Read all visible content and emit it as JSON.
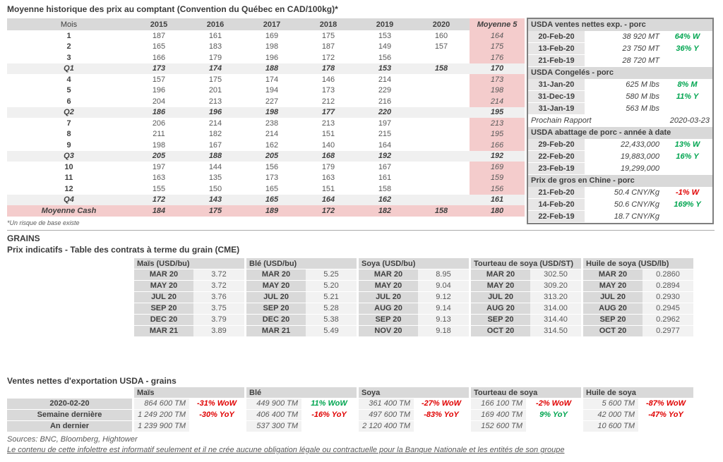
{
  "colors": {
    "pink": "#f4cccc",
    "header_gray": "#d9d9d9",
    "row_gray": "#f0f0f0",
    "cell_gray": "#f2f2f2",
    "green": "#00a550",
    "red": "#e00000"
  },
  "pork_table": {
    "title": "Moyenne historique des prix au comptant (Convention du Québec en CAD/100kg)*",
    "footnote": "*Un risque de base existe",
    "columns": [
      "Mois",
      "2015",
      "2016",
      "2017",
      "2018",
      "2019",
      "2020",
      "Moyenne 5"
    ],
    "rows": [
      {
        "label": "1",
        "type": "month",
        "values": [
          "187",
          "161",
          "169",
          "175",
          "153",
          "160",
          "164"
        ]
      },
      {
        "label": "2",
        "type": "month",
        "values": [
          "165",
          "183",
          "198",
          "187",
          "149",
          "157",
          "175"
        ]
      },
      {
        "label": "3",
        "type": "month",
        "values": [
          "166",
          "179",
          "196",
          "172",
          "156",
          "",
          "176"
        ]
      },
      {
        "label": "Q1",
        "type": "quarter",
        "values": [
          "173",
          "174",
          "188",
          "178",
          "153",
          "158",
          "170"
        ]
      },
      {
        "label": "4",
        "type": "month",
        "values": [
          "157",
          "175",
          "174",
          "146",
          "214",
          "",
          "173"
        ]
      },
      {
        "label": "5",
        "type": "month",
        "values": [
          "196",
          "201",
          "194",
          "173",
          "229",
          "",
          "198"
        ]
      },
      {
        "label": "6",
        "type": "month",
        "values": [
          "204",
          "213",
          "227",
          "212",
          "216",
          "",
          "214"
        ]
      },
      {
        "label": "Q2",
        "type": "quarter",
        "values": [
          "186",
          "196",
          "198",
          "177",
          "220",
          "",
          "195"
        ]
      },
      {
        "label": "7",
        "type": "month",
        "values": [
          "206",
          "214",
          "238",
          "213",
          "197",
          "",
          "213"
        ]
      },
      {
        "label": "8",
        "type": "month",
        "values": [
          "211",
          "182",
          "214",
          "151",
          "215",
          "",
          "195"
        ]
      },
      {
        "label": "9",
        "type": "month",
        "values": [
          "198",
          "167",
          "162",
          "140",
          "164",
          "",
          "166"
        ]
      },
      {
        "label": "Q3",
        "type": "quarter",
        "values": [
          "205",
          "188",
          "205",
          "168",
          "192",
          "",
          "192"
        ]
      },
      {
        "label": "10",
        "type": "month",
        "values": [
          "197",
          "144",
          "156",
          "179",
          "167",
          "",
          "169"
        ]
      },
      {
        "label": "11",
        "type": "month",
        "values": [
          "163",
          "135",
          "173",
          "163",
          "161",
          "",
          "159"
        ]
      },
      {
        "label": "12",
        "type": "month",
        "values": [
          "155",
          "150",
          "165",
          "151",
          "158",
          "",
          "156"
        ]
      },
      {
        "label": "Q4",
        "type": "quarter",
        "values": [
          "172",
          "143",
          "165",
          "164",
          "162",
          "",
          "161"
        ]
      },
      {
        "label": "Moyenne Cash",
        "type": "cash",
        "values": [
          "184",
          "175",
          "189",
          "172",
          "182",
          "158",
          "180"
        ]
      }
    ]
  },
  "usda_box": {
    "items": [
      {
        "type": "section",
        "header": "USDA ventes nettes exp. - porc",
        "rows": [
          {
            "date": "20-Feb-20",
            "value": "38 920  MT",
            "change": "64% W",
            "change_color": "green"
          },
          {
            "date": "13-Feb-20",
            "value": "23 750  MT",
            "change": "36% Y",
            "change_color": "green"
          },
          {
            "date": "21-Feb-19",
            "value": "28 720  MT",
            "change": "",
            "change_color": ""
          }
        ]
      },
      {
        "type": "section",
        "header": "USDA Congelés - porc",
        "rows": [
          {
            "date": "31-Jan-20",
            "value": "625 M lbs",
            "change": "8% M",
            "change_color": "green"
          },
          {
            "date": "31-Dec-19",
            "value": "580 M lbs",
            "change": "11% Y",
            "change_color": "green"
          },
          {
            "date": "31-Jan-19",
            "value": "563 M lbs",
            "change": "",
            "change_color": ""
          }
        ]
      },
      {
        "type": "report",
        "label": "Prochain Rapport",
        "date": "2020-03-23"
      },
      {
        "type": "section",
        "header": "USDA abattage de porc - année à date",
        "rows": [
          {
            "date": "29-Feb-20",
            "value": "22,433,000",
            "change": "13% W",
            "change_color": "green"
          },
          {
            "date": "22-Feb-20",
            "value": "19,883,000",
            "change": "16% Y",
            "change_color": "green"
          },
          {
            "date": "23-Feb-19",
            "value": "19,299,000",
            "change": "",
            "change_color": ""
          }
        ]
      },
      {
        "type": "section",
        "header": "Prix de gros en Chine - porc",
        "rows": [
          {
            "date": "21-Feb-20",
            "value": "50.4 CNY/Kg",
            "change": "-1% W",
            "change_color": "red"
          },
          {
            "date": "14-Feb-20",
            "value": "50.6 CNY/Kg",
            "change": "169% Y",
            "change_color": "green"
          },
          {
            "date": "22-Feb-19",
            "value": "18.7 CNY/Kg",
            "change": "",
            "change_color": ""
          }
        ]
      }
    ]
  },
  "grains": {
    "section_title": "GRAINS",
    "futures_title": "Prix indicatifs - Table des contrats à terme du grain (CME)",
    "exports_title": "Ventes nettes d'exportation USDA - grains"
  },
  "futures": {
    "groups": [
      {
        "header": "Maïs (USD/bu)",
        "rows": [
          [
            "MAR 20",
            "3.72"
          ],
          [
            "MAY 20",
            "3.72"
          ],
          [
            "JUL 20",
            "3.76"
          ],
          [
            "SEP 20",
            "3.75"
          ],
          [
            "DEC 20",
            "3.79"
          ],
          [
            "MAR 21",
            "3.89"
          ]
        ]
      },
      {
        "header": "Blé (USD/bu)",
        "rows": [
          [
            "MAR 20",
            "5.25"
          ],
          [
            "MAY 20",
            "5.20"
          ],
          [
            "JUL 20",
            "5.21"
          ],
          [
            "SEP 20",
            "5.28"
          ],
          [
            "DEC 20",
            "5.38"
          ],
          [
            "MAR 21",
            "5.49"
          ]
        ]
      },
      {
        "header": "Soya (USD/bu)",
        "rows": [
          [
            "MAR 20",
            "8.95"
          ],
          [
            "MAY 20",
            "9.04"
          ],
          [
            "JUL 20",
            "9.12"
          ],
          [
            "AUG 20",
            "9.14"
          ],
          [
            "SEP 20",
            "9.13"
          ],
          [
            "NOV 20",
            "9.18"
          ]
        ]
      },
      {
        "header": "Tourteau de soya (USD/ST)",
        "rows": [
          [
            "MAR 20",
            "302.50"
          ],
          [
            "MAY 20",
            "309.20"
          ],
          [
            "JUL 20",
            "313.20"
          ],
          [
            "AUG 20",
            "314.00"
          ],
          [
            "SEP 20",
            "314.40"
          ],
          [
            "OCT 20",
            "314.50"
          ]
        ]
      },
      {
        "header": "Huile de soya (USD/lb)",
        "rows": [
          [
            "MAR 20",
            "0.2860"
          ],
          [
            "MAY 20",
            "0.2894"
          ],
          [
            "JUL 20",
            "0.2930"
          ],
          [
            "AUG 20",
            "0.2945"
          ],
          [
            "SEP 20",
            "0.2962"
          ],
          [
            "OCT 20",
            "0.2977"
          ]
        ]
      }
    ]
  },
  "exports": {
    "row_labels": [
      "2020-02-20",
      "Semaine dernière",
      "An dernier"
    ],
    "groups": [
      {
        "header": "Maïs",
        "rows": [
          {
            "value": "864 600 TM",
            "change": "-31% WoW",
            "change_color": "red"
          },
          {
            "value": "1 249 200 TM",
            "change": "-30% YoY",
            "change_color": "red"
          },
          {
            "value": "1 239 900 TM",
            "change": "",
            "change_color": ""
          }
        ]
      },
      {
        "header": "Blé",
        "rows": [
          {
            "value": "449 900 TM",
            "change": "11% WoW",
            "change_color": "green"
          },
          {
            "value": "406 400 TM",
            "change": "-16% YoY",
            "change_color": "red"
          },
          {
            "value": "537 300 TM",
            "change": "",
            "change_color": ""
          }
        ]
      },
      {
        "header": "Soya",
        "rows": [
          {
            "value": "361 400 TM",
            "change": "-27% WoW",
            "change_color": "red"
          },
          {
            "value": "497 600 TM",
            "change": "-83% YoY",
            "change_color": "red"
          },
          {
            "value": "2 120 400 TM",
            "change": "",
            "change_color": ""
          }
        ]
      },
      {
        "header": "Tourteau de soya",
        "rows": [
          {
            "value": "166 100 TM",
            "change": "-2% WoW",
            "change_color": "red"
          },
          {
            "value": "169 400 TM",
            "change": "9% YoY",
            "change_color": "green"
          },
          {
            "value": "152 600 TM",
            "change": "",
            "change_color": ""
          }
        ]
      },
      {
        "header": "Huile de soya",
        "rows": [
          {
            "value": "5 600 TM",
            "change": "-87% WoW",
            "change_color": "red"
          },
          {
            "value": "42 000 TM",
            "change": "-47% YoY",
            "change_color": "red"
          },
          {
            "value": "10 600 TM",
            "change": "",
            "change_color": ""
          }
        ]
      }
    ]
  },
  "footer": {
    "sources": "Sources: BNC, Bloomberg, Hightower",
    "disclaimer": "Le contenu de cette infolettre est informatif seulement et il ne crée aucune obligation légale ou contractuelle pour la Banque Nationale et les entités de son groupe"
  }
}
